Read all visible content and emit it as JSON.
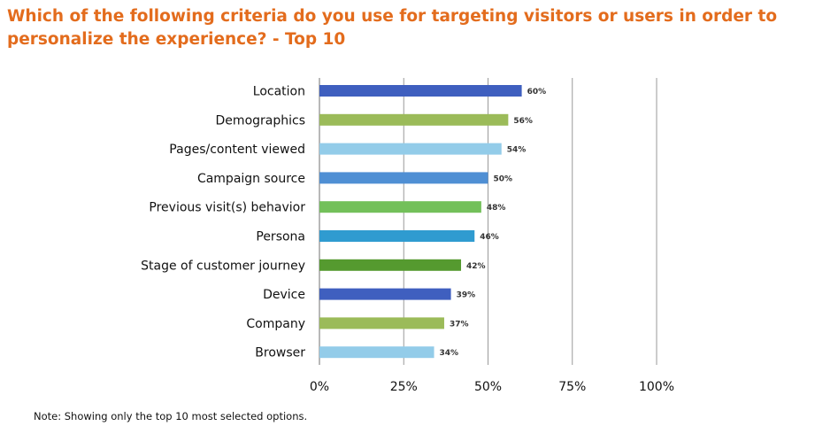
{
  "title": "Which of the following criteria do you use for targeting visitors or users in order to personalize the experience? - Top 10",
  "note": "Note: Showing only the top 10 most selected options.",
  "chart_data": {
    "type": "bar",
    "orientation": "horizontal",
    "categories": [
      "Location",
      "Demographics",
      "Pages/content viewed",
      "Campaign source",
      "Previous visit(s) behavior",
      "Persona",
      "Stage of customer journey",
      "Device",
      "Company",
      "Browser"
    ],
    "values": [
      60,
      56,
      54,
      50,
      48,
      46,
      42,
      39,
      37,
      34
    ],
    "value_labels": [
      "60%",
      "56%",
      "54%",
      "50%",
      "48%",
      "46%",
      "42%",
      "39%",
      "37%",
      "34%"
    ],
    "bar_colors": [
      "#3f5fbf",
      "#9bbb59",
      "#93cce9",
      "#4f8fd4",
      "#73c05a",
      "#2f9bd0",
      "#559a2f",
      "#3f5fbf",
      "#9bbb59",
      "#93cce9"
    ],
    "xlim": [
      0,
      100
    ],
    "x_ticks": [
      0,
      25,
      50,
      75,
      100
    ],
    "x_tick_labels": [
      "0%",
      "25%",
      "50%",
      "75%",
      "100%"
    ],
    "xlabel": "",
    "ylabel": "",
    "grid": true,
    "legend": "none"
  }
}
